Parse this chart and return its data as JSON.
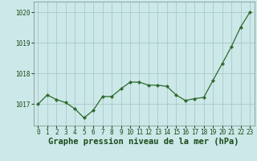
{
  "x": [
    0,
    1,
    2,
    3,
    4,
    5,
    6,
    7,
    8,
    9,
    10,
    11,
    12,
    13,
    14,
    15,
    16,
    17,
    18,
    19,
    20,
    21,
    22,
    23
  ],
  "y": [
    1017.0,
    1017.3,
    1017.15,
    1017.05,
    1016.85,
    1016.55,
    1016.8,
    1017.25,
    1017.25,
    1017.5,
    1017.72,
    1017.72,
    1017.62,
    1017.62,
    1017.58,
    1017.3,
    1017.12,
    1017.18,
    1017.22,
    1017.78,
    1018.32,
    1018.88,
    1019.52,
    1020.0
  ],
  "line_color": "#2d6a2d",
  "marker_color": "#2d6a2d",
  "bg_color": "#cce8e8",
  "grid_color": "#aacaca",
  "xlabel": "Graphe pression niveau de la mer (hPa)",
  "xlabel_fontsize": 7.5,
  "tick_label_color": "#1a4a1a",
  "ylim_min": 1016.3,
  "ylim_max": 1020.35,
  "yticks": [
    1017,
    1018,
    1019,
    1020
  ],
  "xticks": [
    0,
    1,
    2,
    3,
    4,
    5,
    6,
    7,
    8,
    9,
    10,
    11,
    12,
    13,
    14,
    15,
    16,
    17,
    18,
    19,
    20,
    21,
    22,
    23
  ]
}
